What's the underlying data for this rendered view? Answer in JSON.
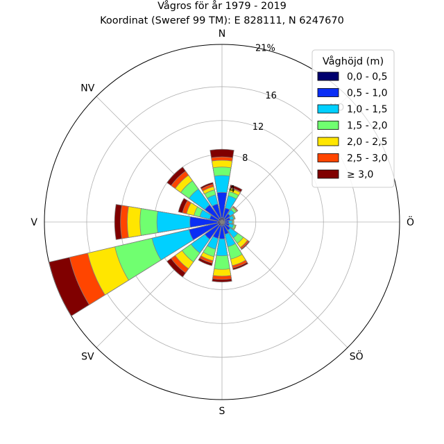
{
  "chart_data": {
    "type": "windrose",
    "title": "Vågros för år 1979 - 2019",
    "subtitle": "Koordinat (Sweref 99 TM): E 828111, N 6247670",
    "direction_labels": [
      "N",
      "NO",
      "Ö",
      "SÖ",
      "S",
      "SV",
      "V",
      "NV"
    ],
    "radial_ticks": [
      4,
      8,
      12,
      16
    ],
    "radial_max_label": "21%",
    "rmax": 21,
    "legend": {
      "title": "Våghöjd (m)",
      "placement": "top-right",
      "classes": [
        "0,0 - 0,5",
        "0,5 - 1,0",
        "1,0 - 1,5",
        "1,5 - 2,0",
        "2,0 - 2,5",
        "2,5 - 3,0",
        "≥ 3,0"
      ]
    },
    "colors": [
      "#00006e",
      "#0a2ef5",
      "#00d0ff",
      "#70ff70",
      "#ffe600",
      "#ff4500",
      "#800000"
    ],
    "sector_width_deg": 22.5,
    "directions_deg": [
      0,
      22.5,
      45,
      67.5,
      90,
      112.5,
      135,
      157.5,
      180,
      202.5,
      225,
      247.5,
      270,
      292.5,
      315,
      337.5
    ],
    "values": [
      [
        0.5,
        3.5,
        5.5,
        6.5,
        7.3,
        7.7,
        8.6
      ],
      [
        0.5,
        1.7,
        3.2,
        3.7,
        4.1,
        4.2,
        4.5
      ],
      [
        0.4,
        1.2,
        1.8,
        2.1,
        2.2,
        2.3,
        2.3
      ],
      [
        0.3,
        1.0,
        1.4,
        1.5,
        1.6,
        1.6,
        1.6
      ],
      [
        0.3,
        0.8,
        1.2,
        1.3,
        1.4,
        1.4,
        1.4
      ],
      [
        0.3,
        0.9,
        1.4,
        1.6,
        1.7,
        1.7,
        1.7
      ],
      [
        0.3,
        1.2,
        2.3,
        3.1,
        3.7,
        3.9,
        4.0
      ],
      [
        0.4,
        1.5,
        3.0,
        4.5,
        5.3,
        5.6,
        5.8
      ],
      [
        0.4,
        2.0,
        4.0,
        5.6,
        6.4,
        6.8,
        7.1
      ],
      [
        0.4,
        2.0,
        3.3,
        4.2,
        4.7,
        5.0,
        5.3
      ],
      [
        0.5,
        2.5,
        4.5,
        5.8,
        6.8,
        7.4,
        8.0
      ],
      [
        0.5,
        4.0,
        8.5,
        13.0,
        16.3,
        18.5,
        22.5
      ],
      [
        0.5,
        3.8,
        7.7,
        9.7,
        11.2,
        12.0,
        12.7
      ],
      [
        0.4,
        1.5,
        2.7,
        3.4,
        4.3,
        4.8,
        5.3
      ],
      [
        0.5,
        2.5,
        4.8,
        6.0,
        6.8,
        7.4,
        8.0
      ],
      [
        0.5,
        2.2,
        3.3,
        3.9,
        4.3,
        4.6,
        4.8
      ]
    ]
  }
}
